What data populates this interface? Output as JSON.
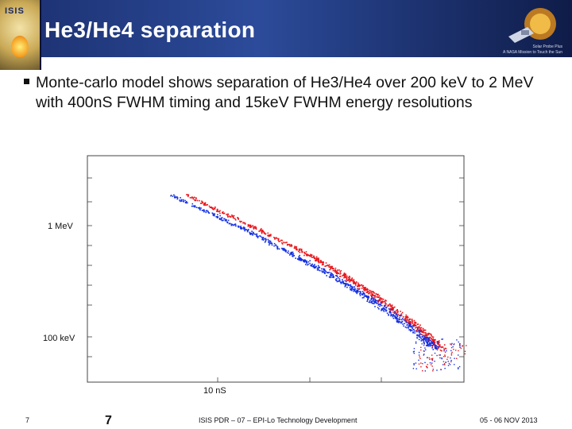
{
  "slide": {
    "title": "He3/He4 separation",
    "logo_text": "ISIS",
    "probe_lines": [
      "Solar Probe Plus",
      "A NASA Mission to Touch the Sun"
    ],
    "bullet": "Monte-carlo model shows separation of He3/He4 over 200 keV to 2 MeV with 400nS FWHM timing and 15keV FWHM energy resolutions"
  },
  "chart_data": {
    "type": "scatter",
    "title": "",
    "xlabel": "",
    "ylabel": "",
    "x_tick_labels": [
      "10 nS"
    ],
    "y_tick_labels": [
      "1 MeV",
      "100 keV"
    ],
    "yscale": "log",
    "xscale": "log",
    "series": [
      {
        "color": "#e8141a",
        "points": [
          [
            200,
            1000
          ],
          [
            330,
            600
          ],
          [
            500,
            380
          ],
          [
            650,
            270
          ],
          [
            800,
            200
          ],
          [
            1000,
            140
          ],
          [
            1200,
            100
          ]
        ]
      },
      {
        "color": "#1430e0",
        "points": [
          [
            180,
            1000
          ],
          [
            300,
            600
          ],
          [
            450,
            380
          ],
          [
            600,
            270
          ],
          [
            750,
            200
          ],
          [
            950,
            140
          ],
          [
            1150,
            100
          ]
        ]
      }
    ],
    "colors": {
      "series_a": "#e8141a",
      "series_b": "#1430e0"
    },
    "grid": false
  },
  "footer": {
    "page_left": "7",
    "page_number": "7",
    "center": "ISIS PDR – 07 – EPI-Lo Technology Development",
    "date": "05 - 06 NOV 2013"
  }
}
